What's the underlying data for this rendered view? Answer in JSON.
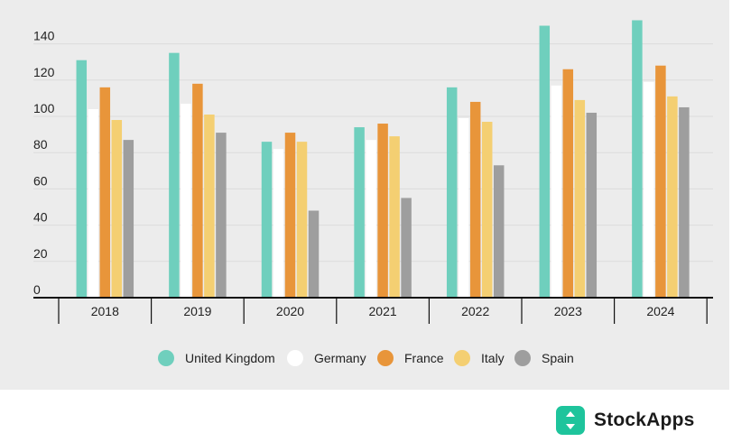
{
  "chart_data": {
    "type": "bar",
    "title": "",
    "xlabel": "",
    "ylabel": "",
    "categories": [
      "2018",
      "2019",
      "2020",
      "2021",
      "2022",
      "2023",
      "2024"
    ],
    "ylim": [
      0,
      150
    ],
    "yticks": [
      0,
      20,
      40,
      60,
      80,
      100,
      120,
      140
    ],
    "grid": true,
    "legend_position": "bottom",
    "series": [
      {
        "name": "United Kingdom",
        "color": "#6fcfbd",
        "values": [
          131,
          135,
          86,
          94,
          116,
          150,
          153
        ]
      },
      {
        "name": "Germany",
        "color": "#ffffff",
        "values": [
          104,
          107,
          82,
          87,
          99,
          117,
          119
        ]
      },
      {
        "name": "France",
        "color": "#e8953a",
        "values": [
          116,
          118,
          91,
          96,
          108,
          126,
          128
        ]
      },
      {
        "name": "Italy",
        "color": "#f4cf72",
        "values": [
          98,
          101,
          86,
          89,
          97,
          109,
          111
        ]
      },
      {
        "name": "Spain",
        "color": "#9e9e9e",
        "values": [
          87,
          91,
          48,
          55,
          73,
          102,
          105
        ]
      }
    ]
  },
  "branding": {
    "logo_text": "StockApps",
    "logo_color": "#1ec49c"
  }
}
